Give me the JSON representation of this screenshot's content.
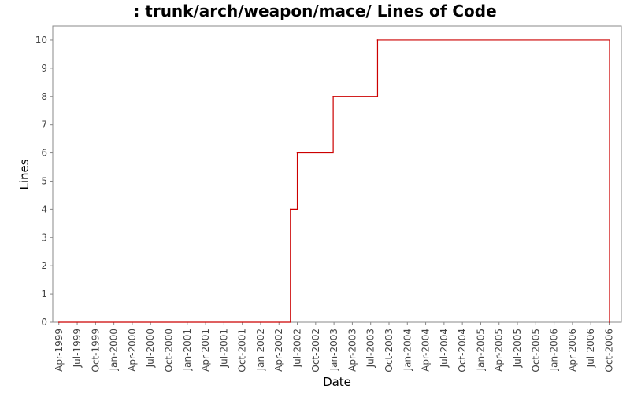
{
  "chart_data": {
    "type": "line",
    "title": ": trunk/arch/weapon/mace/ Lines of Code",
    "xlabel": "Date",
    "ylabel": "Lines",
    "ylim": [
      0,
      10.5
    ],
    "xlim": [
      "1999-03-01",
      "2006-12-01"
    ],
    "yticks": [
      "0",
      "1",
      "2",
      "3",
      "4",
      "5",
      "6",
      "7",
      "8",
      "9",
      "10"
    ],
    "xticks": [
      "Apr-1999",
      "Jul-1999",
      "Oct-1999",
      "Jan-2000",
      "Apr-2000",
      "Jul-2000",
      "Oct-2000",
      "Jan-2001",
      "Apr-2001",
      "Jul-2001",
      "Oct-2001",
      "Jan-2002",
      "Apr-2002",
      "Jul-2002",
      "Oct-2002",
      "Jan-2003",
      "Apr-2003",
      "Jul-2003",
      "Oct-2003",
      "Jan-2004",
      "Apr-2004",
      "Jul-2004",
      "Oct-2004",
      "Jan-2005",
      "Apr-2005",
      "Jul-2005",
      "Oct-2005",
      "Jan-2006",
      "Apr-2006",
      "Jul-2006",
      "Oct-2006"
    ],
    "step": true,
    "grid": false,
    "series": [
      {
        "color": "#cc0000",
        "x": [
          "1999-04-01",
          "2002-05-28",
          "2002-07-01",
          "2002-12-28",
          "2003-08-05",
          "2006-10-03"
        ],
        "y": [
          0,
          4,
          6,
          8,
          10,
          0
        ]
      }
    ]
  }
}
